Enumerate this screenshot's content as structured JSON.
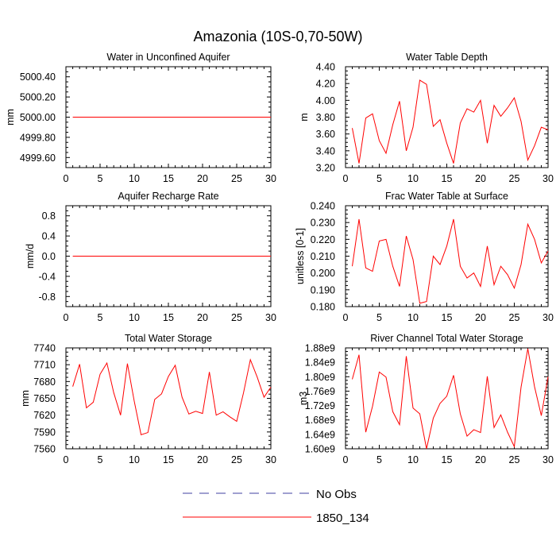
{
  "page": {
    "title": "Amazonia (10S-0,70-50W)"
  },
  "legend": {
    "items": [
      {
        "label": "No Obs",
        "color": "#4040a0",
        "dash": true
      },
      {
        "label": "1850_134",
        "color": "#ff0000",
        "dash": false
      }
    ]
  },
  "chart_data": [
    {
      "type": "line",
      "title": "Water in Unconfined Aquifer",
      "ylabel": "mm",
      "xlim": [
        0,
        30
      ],
      "ylim": [
        4999.5,
        5000.5
      ],
      "xticks": [
        "0",
        "5",
        "10",
        "15",
        "20",
        "25",
        "30"
      ],
      "yticks": [
        "4999.60",
        "4999.80",
        "5000.00",
        "5000.20",
        "5000.40"
      ],
      "ytick_values": [
        4999.6,
        4999.8,
        5000.0,
        5000.2,
        5000.4
      ],
      "series": [
        {
          "name": "1850_134",
          "x": [
            1,
            2,
            3,
            4,
            5,
            6,
            7,
            8,
            9,
            10,
            11,
            12,
            13,
            14,
            15,
            16,
            17,
            18,
            19,
            20,
            21,
            22,
            23,
            24,
            25,
            26,
            27,
            28,
            29,
            30
          ],
          "y": [
            5000,
            5000,
            5000,
            5000,
            5000,
            5000,
            5000,
            5000,
            5000,
            5000,
            5000,
            5000,
            5000,
            5000,
            5000,
            5000,
            5000,
            5000,
            5000,
            5000,
            5000,
            5000,
            5000,
            5000,
            5000,
            5000,
            5000,
            5000,
            5000,
            5000
          ]
        }
      ]
    },
    {
      "type": "line",
      "title": "Water Table Depth",
      "ylabel": "m",
      "xlim": [
        0,
        30
      ],
      "ylim": [
        3.2,
        4.4
      ],
      "xticks": [
        "0",
        "5",
        "10",
        "15",
        "20",
        "25",
        "30"
      ],
      "yticks": [
        "3.20",
        "3.40",
        "3.60",
        "3.80",
        "4.00",
        "4.20",
        "4.40"
      ],
      "ytick_values": [
        3.2,
        3.4,
        3.6,
        3.8,
        4.0,
        4.2,
        4.4
      ],
      "series": [
        {
          "name": "1850_134",
          "x": [
            1,
            2,
            3,
            4,
            5,
            6,
            7,
            8,
            9,
            10,
            11,
            12,
            13,
            14,
            15,
            16,
            17,
            18,
            19,
            20,
            21,
            22,
            23,
            24,
            25,
            26,
            27,
            28,
            29,
            30
          ],
          "y": [
            3.67,
            3.25,
            3.79,
            3.84,
            3.52,
            3.37,
            3.71,
            3.99,
            3.4,
            3.68,
            4.24,
            4.19,
            3.69,
            3.77,
            3.49,
            3.25,
            3.73,
            3.9,
            3.86,
            4.0,
            3.49,
            3.94,
            3.81,
            3.91,
            4.03,
            3.75,
            3.29,
            3.46,
            3.68,
            3.65
          ]
        }
      ]
    },
    {
      "type": "line",
      "title": "Aquifer Recharge Rate",
      "ylabel": "mm/d",
      "xlim": [
        0,
        30
      ],
      "ylim": [
        -1.0,
        1.0
      ],
      "xticks": [
        "0",
        "5",
        "10",
        "15",
        "20",
        "25",
        "30"
      ],
      "yticks": [
        "-0.8",
        "-0.4",
        "0.0",
        "0.4",
        "0.8"
      ],
      "ytick_values": [
        -0.8,
        -0.4,
        0.0,
        0.4,
        0.8
      ],
      "series": [
        {
          "name": "1850_134",
          "x": [
            1,
            2,
            3,
            4,
            5,
            6,
            7,
            8,
            9,
            10,
            11,
            12,
            13,
            14,
            15,
            16,
            17,
            18,
            19,
            20,
            21,
            22,
            23,
            24,
            25,
            26,
            27,
            28,
            29,
            30
          ],
          "y": [
            0,
            0,
            0,
            0,
            0,
            0,
            0,
            0,
            0,
            0,
            0,
            0,
            0,
            0,
            0,
            0,
            0,
            0,
            0,
            0,
            0,
            0,
            0,
            0,
            0,
            0,
            0,
            0,
            0,
            0
          ]
        }
      ]
    },
    {
      "type": "line",
      "title": "Frac Water Table at Surface",
      "ylabel": "unitless [0-1]",
      "xlim": [
        0,
        30
      ],
      "ylim": [
        0.18,
        0.24
      ],
      "xticks": [
        "0",
        "5",
        "10",
        "15",
        "20",
        "25",
        "30"
      ],
      "yticks": [
        "0.180",
        "0.190",
        "0.200",
        "0.210",
        "0.220",
        "0.230",
        "0.240"
      ],
      "ytick_values": [
        0.18,
        0.19,
        0.2,
        0.21,
        0.22,
        0.23,
        0.24
      ],
      "series": [
        {
          "name": "1850_134",
          "x": [
            1,
            2,
            3,
            4,
            5,
            6,
            7,
            8,
            9,
            10,
            11,
            12,
            13,
            14,
            15,
            16,
            17,
            18,
            19,
            20,
            21,
            22,
            23,
            24,
            25,
            26,
            27,
            28,
            29,
            30
          ],
          "y": [
            0.204,
            0.232,
            0.203,
            0.201,
            0.219,
            0.22,
            0.204,
            0.192,
            0.222,
            0.208,
            0.182,
            0.183,
            0.21,
            0.205,
            0.216,
            0.232,
            0.204,
            0.197,
            0.2,
            0.192,
            0.216,
            0.193,
            0.204,
            0.199,
            0.191,
            0.205,
            0.229,
            0.22,
            0.206,
            0.213
          ]
        }
      ]
    },
    {
      "type": "line",
      "title": "Total Water Storage",
      "ylabel": "mm",
      "xlim": [
        0,
        30
      ],
      "ylim": [
        7560,
        7740
      ],
      "xticks": [
        "0",
        "5",
        "10",
        "15",
        "20",
        "25",
        "30"
      ],
      "yticks": [
        "7560",
        "7590",
        "7620",
        "7650",
        "7680",
        "7710",
        "7740"
      ],
      "ytick_values": [
        7560,
        7590,
        7620,
        7650,
        7680,
        7710,
        7740
      ],
      "series": [
        {
          "name": "1850_134",
          "x": [
            1,
            2,
            3,
            4,
            5,
            6,
            7,
            8,
            9,
            10,
            11,
            12,
            13,
            14,
            15,
            16,
            17,
            18,
            19,
            20,
            21,
            22,
            23,
            24,
            25,
            26,
            27,
            28,
            29,
            30
          ],
          "y": [
            7671,
            7711,
            7633,
            7643,
            7693,
            7713,
            7660,
            7620,
            7712,
            7645,
            7585,
            7589,
            7648,
            7658,
            7689,
            7709,
            7652,
            7622,
            7627,
            7623,
            7697,
            7620,
            7626,
            7617,
            7609,
            7660,
            7719,
            7688,
            7652,
            7670
          ]
        }
      ]
    },
    {
      "type": "line",
      "title": "River Channel Total Water Storage",
      "ylabel": "m3",
      "xlim": [
        0,
        30
      ],
      "ylim": [
        1600000000.0,
        1880000000.0
      ],
      "xticks": [
        "0",
        "5",
        "10",
        "15",
        "20",
        "25",
        "30"
      ],
      "yticks": [
        "1.60e9",
        "1.64e9",
        "1.68e9",
        "1.72e9",
        "1.76e9",
        "1.80e9",
        "1.84e9",
        "1.88e9"
      ],
      "ytick_values": [
        1600000000.0,
        1640000000.0,
        1680000000.0,
        1720000000.0,
        1760000000.0,
        1800000000.0,
        1840000000.0,
        1880000000.0
      ],
      "series": [
        {
          "name": "1850_134",
          "x": [
            1,
            2,
            3,
            4,
            5,
            6,
            7,
            8,
            9,
            10,
            11,
            12,
            13,
            14,
            15,
            16,
            17,
            18,
            19,
            20,
            21,
            22,
            23,
            24,
            25,
            26,
            27,
            28,
            29,
            30
          ],
          "y": [
            1793000000.0,
            1861000000.0,
            1646000000.0,
            1718000000.0,
            1813000000.0,
            1799000000.0,
            1703000000.0,
            1667000000.0,
            1857000000.0,
            1713000000.0,
            1697000000.0,
            1600000000.0,
            1685000000.0,
            1726000000.0,
            1746000000.0,
            1804000000.0,
            1697000000.0,
            1635000000.0,
            1653000000.0,
            1645000000.0,
            1801000000.0,
            1659000000.0,
            1694000000.0,
            1646000000.0,
            1606000000.0,
            1771000000.0,
            1878000000.0,
            1772000000.0,
            1692000000.0,
            1800000000.0
          ]
        }
      ]
    }
  ]
}
